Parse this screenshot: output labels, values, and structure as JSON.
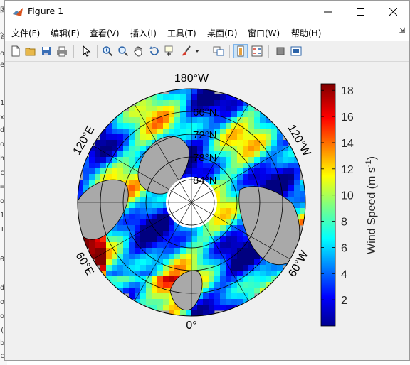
{
  "window": {
    "title": "Figure 1"
  },
  "menu": [
    "文件(F)",
    "编辑(E)",
    "查看(V)",
    "插入(I)",
    "工具(T)",
    "桌面(D)",
    "窗口(W)",
    "帮助(H)"
  ],
  "toolbar": [
    {
      "name": "new-figure-icon"
    },
    {
      "name": "open-file-icon"
    },
    {
      "name": "save-icon"
    },
    {
      "name": "print-icon"
    },
    {
      "name": "pointer-icon"
    },
    {
      "name": "zoom-in-icon"
    },
    {
      "name": "zoom-out-icon"
    },
    {
      "name": "pan-hand-icon"
    },
    {
      "name": "rotate-3d-icon"
    },
    {
      "name": "data-cursor-icon"
    },
    {
      "name": "brush-icon"
    },
    {
      "name": "brush-dropdown-icon"
    },
    {
      "name": "link-plot-icon"
    },
    {
      "name": "colorbar-icon"
    },
    {
      "name": "legend-icon"
    },
    {
      "name": "hide-plot-tools-icon"
    },
    {
      "name": "show-plot-tools-icon"
    }
  ],
  "chart_data": {
    "type": "heatmap",
    "projection": "polar-stereographic-north",
    "lat_circles": [
      66,
      72,
      78,
      84
    ],
    "lat_labels": [
      "66°N",
      "72°N",
      "78°N",
      "84°N"
    ],
    "lon_labels": [
      {
        "lon": 180,
        "text": "180°W"
      },
      {
        "lon": 120,
        "text": "120°E"
      },
      {
        "lon": 60,
        "text": "60°E"
      },
      {
        "lon": 0,
        "text": "0°"
      },
      {
        "lon": -60,
        "text": "60°W"
      },
      {
        "lon": -120,
        "text": "120°W"
      }
    ],
    "colorbar": {
      "label": "Wind Speed (m s",
      "label_sup": "-1",
      "label_end": ")",
      "min": 0,
      "max": 18.5,
      "ticks": [
        2,
        4,
        6,
        8,
        10,
        12,
        14,
        16,
        18
      ],
      "colormap": "jet"
    },
    "land_color": "#a9a9a9",
    "background_color": "#f0f0f0"
  }
}
